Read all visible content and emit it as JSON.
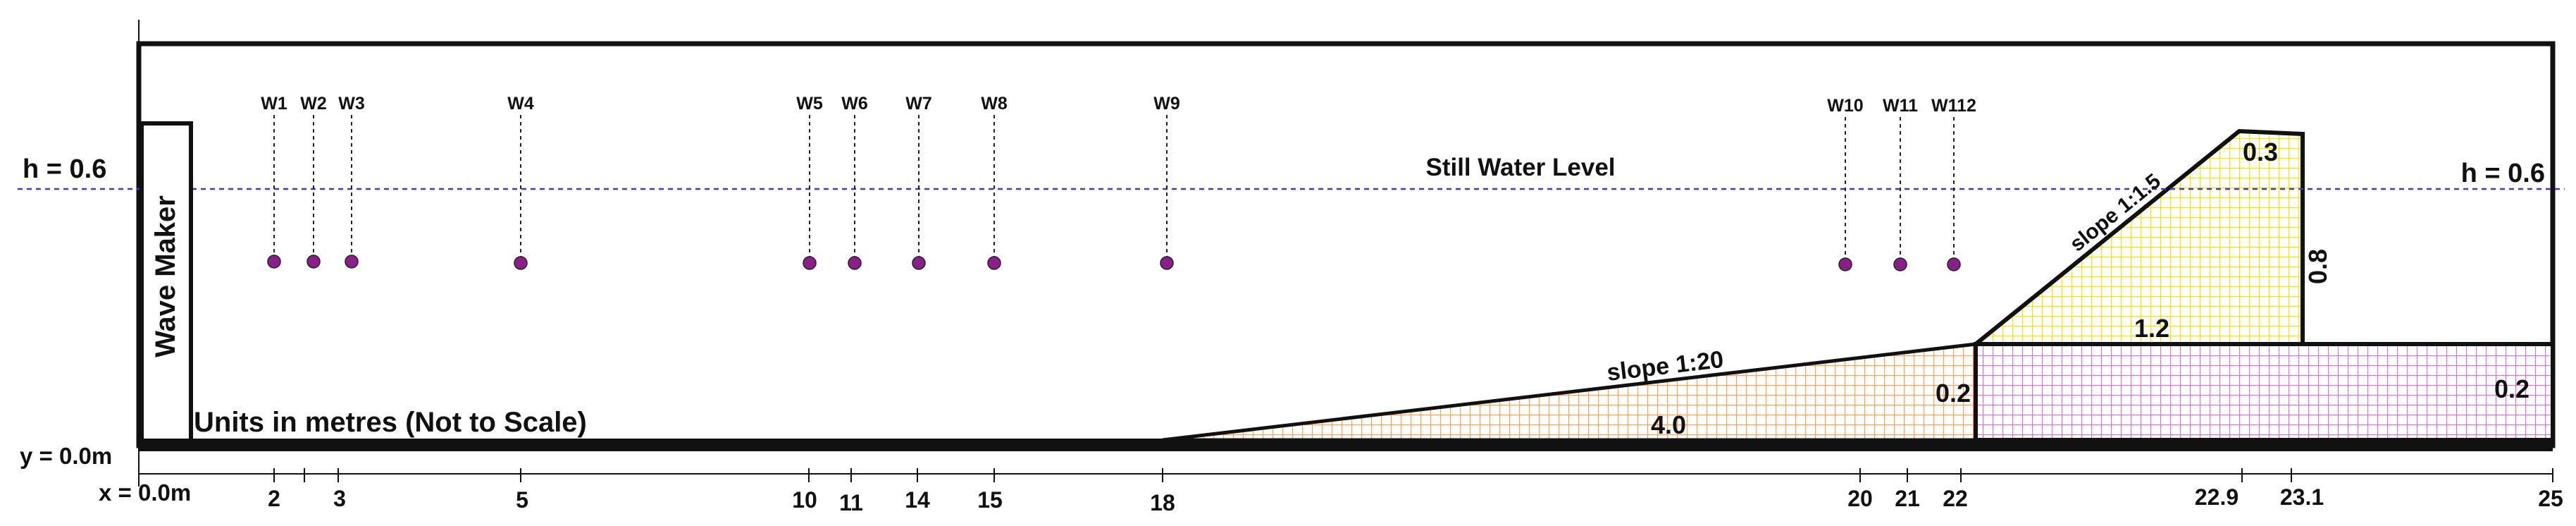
{
  "wave_maker": "Wave Maker",
  "units_note": "Units in metres (Not to Scale)",
  "still_water": "Still Water Level",
  "water_depth_left": "h = 0.6",
  "water_depth_right": "h = 0.6",
  "origin_y": "y = 0.0m",
  "origin_x": "x = 0.0m",
  "slope_gentle": "slope 1:20",
  "slope_steep": "slope 1:1.5",
  "dims": {
    "slope_length": "4.0",
    "ramp_height": "0.2",
    "shelf_height": "0.2",
    "crest_height": "0.8",
    "base_width": "1.2",
    "crest_width": "0.3"
  },
  "gauges": [
    {
      "name": "W1",
      "x": 2
    },
    {
      "name": "W2",
      "x": 2.6
    },
    {
      "name": "W3",
      "x": 3
    },
    {
      "name": "W4",
      "x": 5
    },
    {
      "name": "W5",
      "x": 10
    },
    {
      "name": "W6",
      "x": 11
    },
    {
      "name": "W7",
      "x": 14
    },
    {
      "name": "W8",
      "x": 15
    },
    {
      "name": "W9",
      "x": 18
    },
    {
      "name": "W10",
      "x": 20
    },
    {
      "name": "W11",
      "x": 21
    },
    {
      "name": "W112",
      "x": 22
    }
  ],
  "x_axis_labels": [
    "2",
    "3",
    "5",
    "10",
    "11",
    "14",
    "15",
    "18",
    "20",
    "21",
    "22",
    "22.9",
    "23.1",
    "25"
  ],
  "colors": {
    "outline": "#111111",
    "swl": "#3b3bd6",
    "gauge_dot": "#8a1f8a",
    "slope_fill": "#f3b48a",
    "crest_fill": "#f2e36a",
    "shelf_fill": "#d08ad0"
  }
}
